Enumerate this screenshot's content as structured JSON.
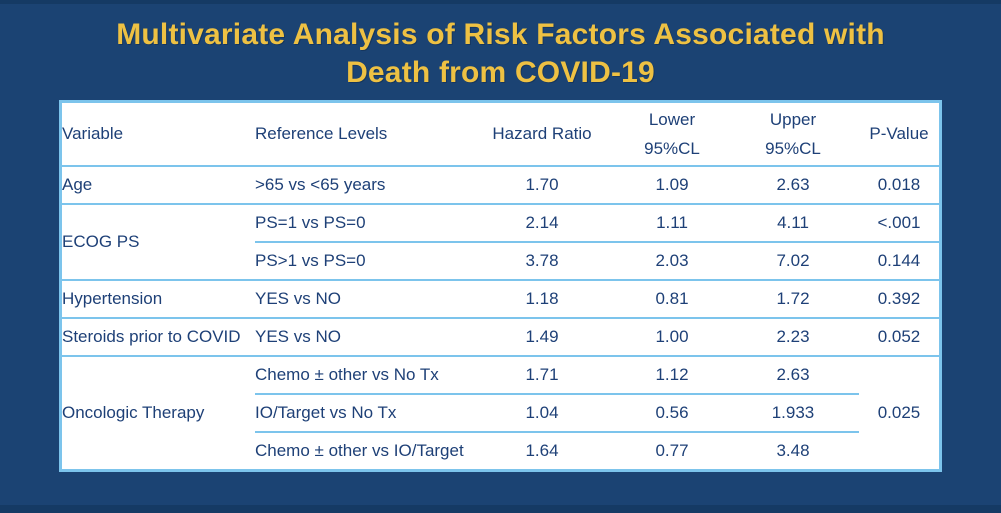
{
  "page": {
    "background_color": "#1B4373",
    "edge_strip_color": "#153a64"
  },
  "title": {
    "text": "Multivariate Analysis of Risk Factors Associated with Death from COVID-19",
    "color": "#EEC143"
  },
  "table": {
    "text_color": "#1E4077",
    "border_color": "#7CC4EC",
    "background": "#ffffff",
    "headers": {
      "variable": "Variable",
      "reference": "Reference Levels",
      "hazard_ratio": "Hazard Ratio",
      "lower_line1": "Lower",
      "lower_line2": "95%CL",
      "upper_line1": "Upper",
      "upper_line2": "95%CL",
      "p_value": "P-Value"
    },
    "rows": [
      {
        "variable": "Age",
        "reference": ">65 vs <65 years",
        "hazard_ratio": "1.70",
        "lower": "1.09",
        "upper": "2.63",
        "p_value": "0.018",
        "p_bold": true
      },
      {
        "variable": "ECOG PS",
        "reference": "PS=1 vs PS=0",
        "hazard_ratio": "2.14",
        "lower": "1.11",
        "upper": "4.11",
        "p_value": "<.001",
        "p_bold": true
      },
      {
        "reference": "PS>1 vs PS=0",
        "hazard_ratio": "3.78",
        "lower": "2.03",
        "upper": "7.02",
        "p_value": "0.144",
        "p_bold": false
      },
      {
        "variable": "Hypertension",
        "reference": "YES vs NO",
        "hazard_ratio": "1.18",
        "lower": "0.81",
        "upper": "1.72",
        "p_value": "0.392",
        "p_bold": false
      },
      {
        "variable": "Steroids prior to COVID",
        "reference": "YES vs NO",
        "hazard_ratio": "1.49",
        "lower": "1.00",
        "upper": "2.23",
        "p_value": "0.052",
        "p_bold": true
      },
      {
        "variable": "Oncologic Therapy",
        "reference": "Chemo ± other vs No Tx",
        "hazard_ratio": "1.71",
        "lower": "1.12",
        "upper": "2.63",
        "p_value": "0.025",
        "p_bold": true
      },
      {
        "reference": "IO/Target vs No Tx",
        "hazard_ratio": "1.04",
        "lower": "0.56",
        "upper": "1.933"
      },
      {
        "reference": "Chemo ± other vs IO/Target",
        "hazard_ratio": "1.64",
        "lower": "0.77",
        "upper": "3.48"
      }
    ]
  }
}
